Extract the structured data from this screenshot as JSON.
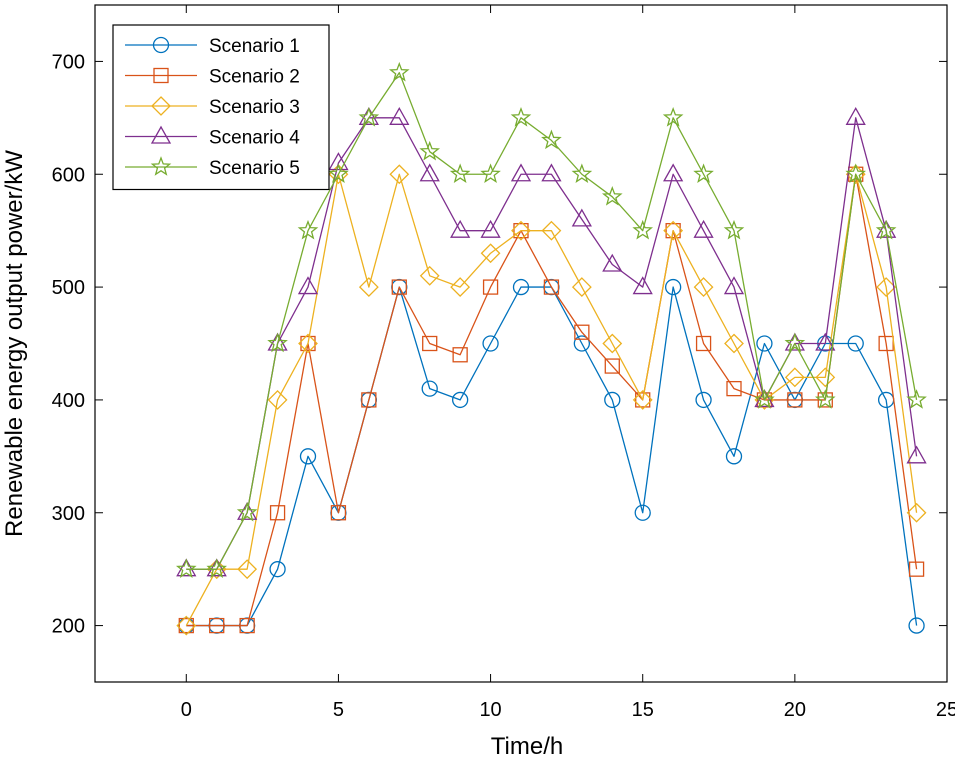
{
  "chart_data": {
    "type": "line",
    "title": "",
    "xlabel": "Time/h",
    "ylabel": "Renewable energy output power/kW",
    "xlim": [
      -3,
      25
    ],
    "ylim": [
      150,
      750
    ],
    "xticks": [
      0,
      5,
      10,
      15,
      20,
      25
    ],
    "yticks": [
      200,
      300,
      400,
      500,
      600,
      700
    ],
    "legend_position": "top-left",
    "grid": false,
    "x": [
      0,
      1,
      2,
      3,
      4,
      5,
      6,
      7,
      8,
      9,
      10,
      11,
      12,
      13,
      14,
      15,
      16,
      17,
      18,
      19,
      20,
      21,
      22,
      23,
      24
    ],
    "series": [
      {
        "name": "Scenario 1",
        "color": "#0072BD",
        "marker": "circle",
        "values": [
          200,
          200,
          200,
          250,
          350,
          300,
          400,
          500,
          410,
          400,
          450,
          500,
          500,
          450,
          400,
          300,
          500,
          400,
          350,
          450,
          400,
          450,
          450,
          400,
          200
        ]
      },
      {
        "name": "Scenario 2",
        "color": "#D95319",
        "marker": "square",
        "values": [
          200,
          200,
          200,
          300,
          450,
          300,
          400,
          500,
          450,
          440,
          500,
          550,
          500,
          460,
          430,
          400,
          550,
          450,
          410,
          400,
          400,
          400,
          600,
          450,
          250
        ]
      },
      {
        "name": "Scenario 3",
        "color": "#EDB120",
        "marker": "diamond",
        "values": [
          200,
          250,
          250,
          400,
          450,
          600,
          500,
          600,
          510,
          500,
          530,
          550,
          550,
          500,
          450,
          400,
          550,
          500,
          450,
          400,
          420,
          420,
          600,
          500,
          300
        ]
      },
      {
        "name": "Scenario 4",
        "color": "#7E2F8E",
        "marker": "triangle",
        "values": [
          250,
          250,
          300,
          450,
          500,
          610,
          650,
          650,
          600,
          550,
          550,
          600,
          600,
          560,
          520,
          500,
          600,
          550,
          500,
          400,
          450,
          450,
          650,
          550,
          350
        ]
      },
      {
        "name": "Scenario 5",
        "color": "#77AC30",
        "marker": "star",
        "values": [
          250,
          250,
          300,
          450,
          550,
          600,
          650,
          690,
          620,
          600,
          600,
          650,
          630,
          600,
          580,
          550,
          650,
          600,
          550,
          400,
          450,
          400,
          600,
          550,
          400
        ]
      }
    ]
  }
}
